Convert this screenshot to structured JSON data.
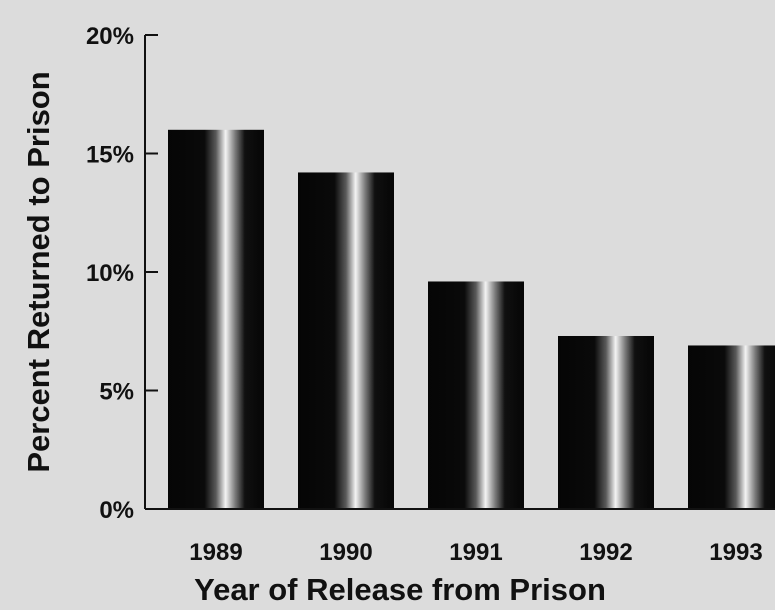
{
  "chart_data": {
    "type": "bar",
    "categories": [
      "1989",
      "1990",
      "1991",
      "1992",
      "1993"
    ],
    "values": [
      16.0,
      14.2,
      9.6,
      7.3,
      6.9
    ],
    "ylim": [
      0,
      20
    ],
    "yticks": [
      "0%",
      "5%",
      "10%",
      "15%",
      "20%"
    ],
    "xlabel": "Year of Release from Prison",
    "ylabel": "Percent Returned to Prison",
    "grid": false,
    "bar_colors": {
      "edge": "#050505",
      "highlight": "#f4f4f4"
    }
  }
}
